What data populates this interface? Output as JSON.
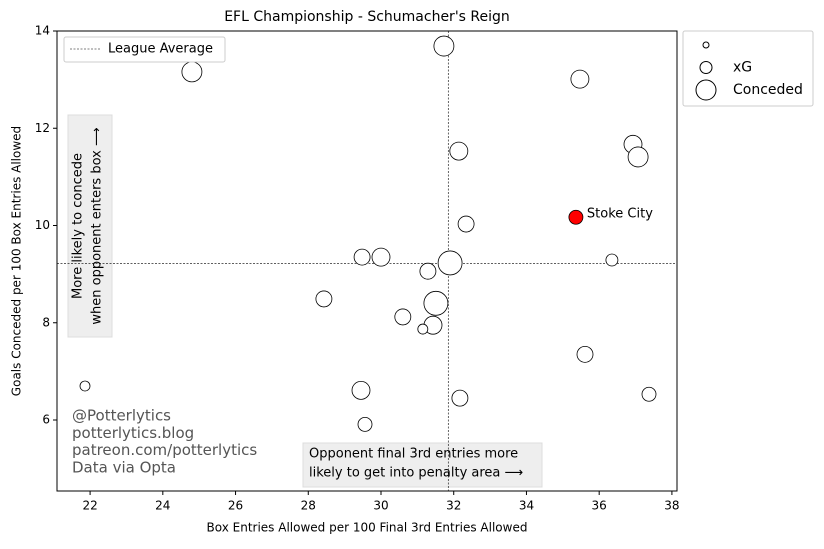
{
  "chart_data": {
    "type": "scatter",
    "title": "EFL Championship - Schumacher's Reign",
    "x_label": "Box Entries Allowed per 100 Final 3rd Entries Allowed",
    "y_label": "Goals Conceded per 100 Box Entries Allowed",
    "xlim": [
      21.09,
      38.14
    ],
    "ylim": [
      4.54,
      14
    ],
    "xticks": [
      22,
      24,
      26,
      28,
      30,
      32,
      34,
      36,
      38
    ],
    "yticks": [
      6,
      8,
      10,
      12,
      14
    ],
    "x": [
      24.8,
      31.73,
      35.47,
      36.93,
      37.07,
      32.14,
      32.34,
      35.36,
      36.35,
      29.48,
      30.0,
      31.29,
      31.9,
      28.43,
      31.51,
      30.6,
      31.43,
      31.15,
      35.61,
      21.86,
      29.45,
      32.17,
      37.37,
      29.56
    ],
    "y": [
      13.16,
      13.69,
      13.01,
      11.67,
      11.41,
      11.53,
      10.03,
      10.17,
      9.29,
      9.35,
      9.35,
      9.06,
      9.23,
      8.49,
      8.4,
      8.12,
      7.95,
      7.87,
      7.35,
      6.7,
      6.61,
      6.45,
      6.53,
      5.91
    ],
    "sizes": [
      10,
      10,
      9,
      9,
      10,
      9,
      8,
      7,
      6,
      8,
      9,
      8,
      12,
      8,
      12,
      8,
      9,
      5,
      8,
      5,
      9,
      8,
      7,
      7
    ],
    "colors": [
      "white",
      "white",
      "white",
      "white",
      "white",
      "white",
      "white",
      "red",
      "white",
      "white",
      "white",
      "white",
      "white",
      "white",
      "white",
      "white",
      "white",
      "white",
      "white",
      "white",
      "white",
      "white",
      "white",
      "white"
    ],
    "point_labels": [
      null,
      null,
      null,
      null,
      null,
      null,
      null,
      "Stoke City",
      null,
      null,
      null,
      null,
      null,
      null,
      null,
      null,
      null,
      null,
      null,
      null,
      null,
      null,
      null,
      null
    ],
    "league_average": {
      "label": "League Average",
      "x": 31.85,
      "y": 9.22
    },
    "size_legend": [
      {
        "size": 3,
        "label": null
      },
      {
        "size": 6,
        "label": "xG"
      },
      {
        "size": 10,
        "label": "Conceded"
      }
    ],
    "annotations": {
      "y_note": [
        "More likely to concede",
        "when opponent enters box ⟶"
      ],
      "x_note": [
        "Opponent final 3rd entries more",
        "likely to get into penalty area ⟶"
      ],
      "credits": [
        "@Potterlytics",
        "potterlytics.blog",
        "patreon.com/potterlytics",
        "Data via Opta"
      ]
    }
  }
}
